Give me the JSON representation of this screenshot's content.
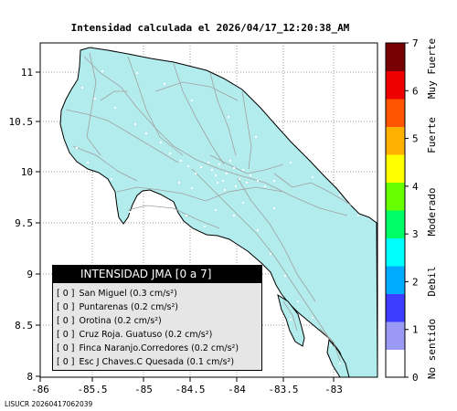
{
  "title": "Intensidad calculada el 2026/04/17_12:20:38_AM",
  "map": {
    "x_ticks": [
      "-86",
      "-85.5",
      "-85",
      "-84.5",
      "-84",
      "-83.5",
      "-83"
    ],
    "y_ticks": [
      "11",
      "10.5",
      "10",
      "9.5",
      "9",
      "8.5",
      "8"
    ],
    "land_color": "#b3ecec",
    "road_color": "#a0a0a0",
    "outline_color": "#000000"
  },
  "colorbar": {
    "ticks": [
      "0",
      "1",
      "2",
      "3",
      "4",
      "5",
      "6",
      "7"
    ],
    "labels": [
      "No sentido",
      "Debil",
      "Moderado",
      "Fuerte",
      "Muy Fuerte"
    ],
    "colors": [
      "#ffffff",
      "#9a9af5",
      "#3d3dff",
      "#00aaff",
      "#00ffff",
      "#00ff66",
      "#66ff00",
      "#ffff00",
      "#ffb000",
      "#ff5500",
      "#ee0000",
      "#770000"
    ]
  },
  "legend": {
    "header": "INTENSIDAD JMA [0 a 7]",
    "rows": [
      {
        "value": "[ 0 ]",
        "station": "San Miguel",
        "pga": "(0.3 cm/s²)"
      },
      {
        "value": "[ 0 ]",
        "station": "Puntarenas",
        "pga": "(0.2 cm/s²)"
      },
      {
        "value": "[ 0 ]",
        "station": "Orotina",
        "pga": "(0.2 cm/s²)"
      },
      {
        "value": "[ 0 ]",
        "station": "Cruz Roja. Guatuso",
        "pga": "(0.2 cm/s²)"
      },
      {
        "value": "[ 0 ]",
        "station": "Finca Naranjo.Corredores",
        "pga": "(0.2 cm/s²)"
      },
      {
        "value": "[ 0 ]",
        "station": "Esc J Chaves.C Quesada",
        "pga": "(0.1 cm/s²)"
      }
    ]
  },
  "footer": "LISUCR 20260417062039"
}
